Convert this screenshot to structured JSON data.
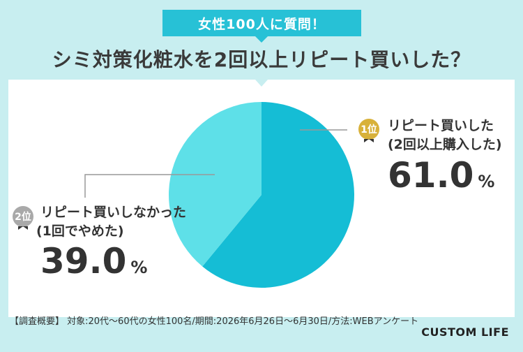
{
  "header": {
    "badge": "女性100人に質問！",
    "title": "シミ対策化粧水を2回以上リピート買いした？"
  },
  "chart_data": {
    "type": "pie",
    "slices": [
      {
        "label": "リピート買いした (2回以上購入した)",
        "value": 61.0,
        "rank": "1位",
        "color": "#15bdd5"
      },
      {
        "label": "リピート買いしなかった (1回でやめた)",
        "value": 39.0,
        "rank": "2位",
        "color": "#5ee0e8"
      }
    ]
  },
  "labels": {
    "first": {
      "rank": "1位",
      "line1": "リピート買いした",
      "line2": "(2回以上購入した)",
      "value": "61.0",
      "unit": "%"
    },
    "second": {
      "rank": "2位",
      "line1": "リピート買いしなかった",
      "line2": "(1回でやめた)",
      "value": "39.0",
      "unit": "%"
    }
  },
  "footer": {
    "note": "【調査概要】 対象:20代〜60代の女性100名/期間:2026年6月26日〜6月30日/方法:WEBアンケート",
    "brand": "CUSTOM LIFE"
  }
}
